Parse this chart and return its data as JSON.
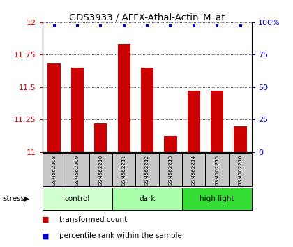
{
  "title": "GDS3933 / AFFX-Athal-Actin_M_at",
  "samples": [
    "GSM562208",
    "GSM562209",
    "GSM562210",
    "GSM562211",
    "GSM562212",
    "GSM562213",
    "GSM562214",
    "GSM562215",
    "GSM562216"
  ],
  "transformed_counts": [
    11.68,
    11.65,
    11.22,
    11.83,
    11.65,
    11.12,
    11.47,
    11.47,
    11.2
  ],
  "percentile_ranks": [
    100,
    100,
    100,
    100,
    100,
    100,
    100,
    100,
    100
  ],
  "ylim_left": [
    11.0,
    12.0
  ],
  "ylim_right": [
    0,
    100
  ],
  "yticks_left": [
    11.0,
    11.25,
    11.5,
    11.75,
    12.0
  ],
  "ytick_labels_left": [
    "11",
    "11.25",
    "11.5",
    "11.75",
    "12"
  ],
  "yticks_right": [
    0,
    25,
    50,
    75,
    100
  ],
  "ytick_labels_right": [
    "0",
    "25",
    "50",
    "75",
    "100%"
  ],
  "groups": [
    {
      "label": "control",
      "indices": [
        0,
        1,
        2
      ],
      "color": "#d0ffd0"
    },
    {
      "label": "dark",
      "indices": [
        3,
        4,
        5
      ],
      "color": "#aaffaa"
    },
    {
      "label": "high light",
      "indices": [
        6,
        7,
        8
      ],
      "color": "#33dd33"
    }
  ],
  "bar_color": "#cc0000",
  "dot_color": "#0000cc",
  "bar_width": 0.55,
  "plot_bg_color": "#ffffff",
  "stress_label": "stress",
  "legend_items": [
    {
      "color": "#cc0000",
      "label": "transformed count"
    },
    {
      "color": "#0000cc",
      "label": "percentile rank within the sample"
    }
  ],
  "grid_yticks": [
    11.25,
    11.5,
    11.75
  ],
  "sample_cell_color": "#c8c8c8",
  "fig_width": 4.2,
  "fig_height": 3.54,
  "dpi": 100
}
